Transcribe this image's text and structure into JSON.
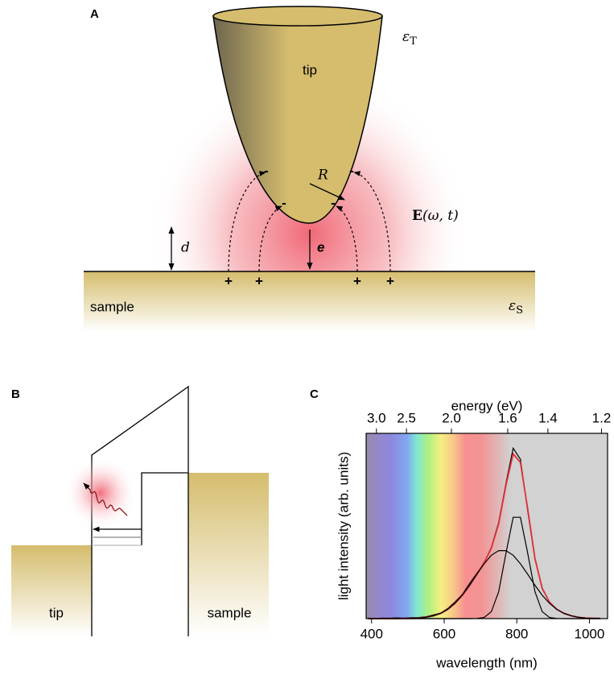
{
  "panel_a": {
    "panel_label": "A",
    "tip": "tip",
    "sample": "sample",
    "eps_tip": {
      "symbol": "ε",
      "subscript": "T"
    },
    "eps_sample": {
      "symbol": "ε",
      "subscript": "S"
    },
    "radius": "R",
    "distance": "d",
    "electron": "e",
    "field": {
      "vector": "E",
      "args": "(ω, t)"
    },
    "minus": "-",
    "plus": "+"
  },
  "panel_b": {
    "panel_label": "B",
    "tip": "tip",
    "sample": "sample"
  },
  "panel_c": {
    "panel_label": "C"
  },
  "chart_data": {
    "type": "line",
    "x_label": "wavelength (nm)",
    "x2_label": "energy (eV)",
    "y_label": "light intensity (arb. units)",
    "xlim": [
      385,
      1050
    ],
    "xticks": [
      400,
      600,
      800,
      1000
    ],
    "x2ticks": [
      {
        "value": 3.0,
        "label": "3.0"
      },
      2.5,
      {
        "value": 2.0,
        "label": "2.0"
      },
      1.6,
      1.4,
      1.2
    ],
    "ylim": [
      0,
      1
    ],
    "x": [
      390,
      410,
      430,
      450,
      470,
      490,
      510,
      530,
      550,
      570,
      590,
      610,
      630,
      650,
      670,
      690,
      710,
      730,
      750,
      770,
      790,
      810,
      830,
      850,
      870,
      890,
      910,
      930,
      950,
      970,
      990,
      1010,
      1030
    ],
    "series": [
      {
        "color": "#000000",
        "values": [
          0.002,
          0.001,
          0.003,
          0.002,
          0.004,
          0.003,
          0.005,
          0.006,
          0.01,
          0.02,
          0.03,
          0.055,
          0.09,
          0.13,
          0.19,
          0.245,
          0.3,
          0.385,
          0.52,
          0.73,
          0.92,
          0.86,
          0.58,
          0.32,
          0.16,
          0.09,
          0.05,
          0.03,
          0.016,
          0.008,
          0.004,
          0.003,
          0.002
        ]
      },
      {
        "color": "#e0303a",
        "values": [
          0,
          0,
          0,
          0,
          0,
          0.001,
          0.001,
          0.003,
          0.007,
          0.015,
          0.028,
          0.05,
          0.083,
          0.126,
          0.18,
          0.24,
          0.302,
          0.38,
          0.512,
          0.719,
          0.889,
          0.843,
          0.591,
          0.325,
          0.164,
          0.089,
          0.051,
          0.028,
          0.015,
          0.007,
          0.003,
          0.001,
          0.001
        ]
      },
      {
        "color": "#000000",
        "values": [
          0,
          0,
          0,
          0,
          0,
          0,
          0,
          0,
          0,
          0,
          0,
          0,
          0,
          0,
          0,
          0.001,
          0.006,
          0.038,
          0.145,
          0.352,
          0.547,
          0.547,
          0.352,
          0.145,
          0.038,
          0.006,
          0.001,
          0,
          0,
          0,
          0,
          0,
          0
        ]
      },
      {
        "color": "#000000",
        "values": [
          0,
          0,
          0,
          0,
          0,
          0.001,
          0.001,
          0.003,
          0.007,
          0.015,
          0.028,
          0.05,
          0.083,
          0.126,
          0.18,
          0.239,
          0.296,
          0.342,
          0.367,
          0.367,
          0.342,
          0.296,
          0.239,
          0.18,
          0.126,
          0.083,
          0.05,
          0.028,
          0.015,
          0.007,
          0.003,
          0.001,
          0.001
        ]
      }
    ]
  }
}
